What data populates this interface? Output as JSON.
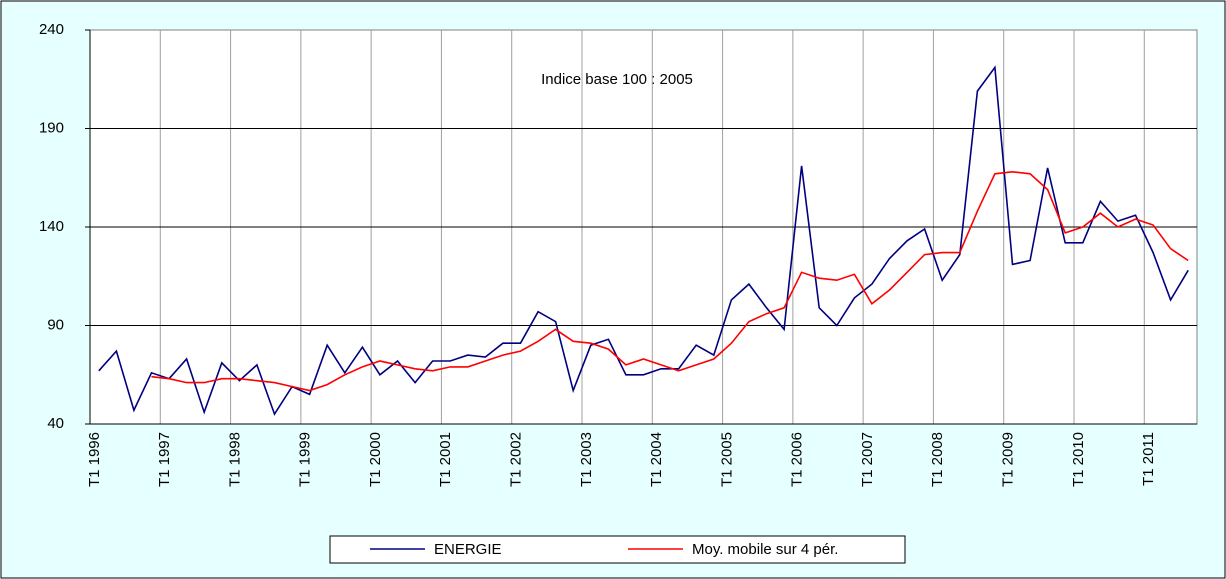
{
  "chart_data": {
    "type": "line",
    "annotation": "Indice base 100 : 2005",
    "categories": [
      "T1 1996",
      null,
      null,
      null,
      "T1 1997",
      null,
      null,
      null,
      "T1 1998",
      null,
      null,
      null,
      "T1 1999",
      null,
      null,
      null,
      "T1 2000",
      null,
      null,
      null,
      "T1 2001",
      null,
      null,
      null,
      "T1 2002",
      null,
      null,
      null,
      "T1 2003",
      null,
      null,
      null,
      "T1 2004",
      null,
      null,
      null,
      "T1 2005",
      null,
      null,
      null,
      "T1 2006",
      null,
      null,
      null,
      "T1 2007",
      null,
      null,
      null,
      "T1 2008",
      null,
      null,
      null,
      "T1 2009",
      null,
      null,
      null,
      "T1 2010",
      null,
      null,
      null,
      "T1 2011",
      null,
      null
    ],
    "series": [
      {
        "name": "ENERGIE",
        "color": "#000080",
        "values": [
          67,
          77,
          47,
          66,
          63,
          73,
          46,
          71,
          62,
          70,
          45,
          59,
          55,
          80,
          66,
          79,
          65,
          72,
          61,
          72,
          72,
          75,
          74,
          81,
          81,
          97,
          92,
          57,
          80,
          83,
          65,
          65,
          68,
          68,
          80,
          75,
          103,
          111,
          99,
          88,
          171,
          99,
          90,
          104,
          111,
          124,
          133,
          139,
          113,
          126,
          209,
          221,
          121,
          123,
          170,
          132,
          132,
          153,
          143,
          146,
          127,
          103,
          118
        ]
      },
      {
        "name": "Moy. mobile sur 4 pér.",
        "color": "#ff0000",
        "values": [
          null,
          null,
          null,
          64,
          63,
          61,
          61,
          63,
          63,
          62,
          61,
          59,
          57,
          60,
          65,
          69,
          72,
          70,
          68,
          67,
          69,
          69,
          72,
          75,
          77,
          82,
          88,
          82,
          81,
          78,
          70,
          73,
          70,
          67,
          70,
          73,
          81,
          92,
          96,
          99,
          117,
          114,
          113,
          116,
          101,
          108,
          117,
          126,
          127,
          127,
          148,
          167,
          168,
          167,
          159,
          137,
          140,
          147,
          140,
          144,
          141,
          129,
          123
        ]
      }
    ],
    "ylim": [
      40,
      240
    ],
    "yticks": [
      40,
      90,
      140,
      190,
      240
    ],
    "grid": true,
    "legend": "bottom"
  }
}
